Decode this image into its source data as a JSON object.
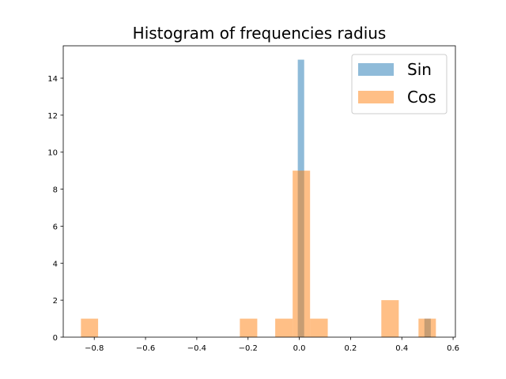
{
  "chart_data": {
    "type": "bar",
    "title": "Histogram of frequencies radius",
    "xlabel": "",
    "ylabel": "",
    "xlim": [
      -0.921,
      0.609
    ],
    "ylim": [
      0,
      15.75
    ],
    "x_ticks": [
      -0.8,
      -0.6,
      -0.4,
      -0.2,
      0.0,
      0.2,
      0.4,
      0.6
    ],
    "x_tick_labels": [
      "−0.8",
      "−0.6",
      "−0.4",
      "−0.2",
      "0.0",
      "0.2",
      "0.4",
      "0.6"
    ],
    "y_ticks": [
      0,
      2,
      4,
      6,
      8,
      10,
      12,
      14
    ],
    "y_tick_labels": [
      "0",
      "2",
      "4",
      "6",
      "8",
      "10",
      "12",
      "14"
    ],
    "legend_position": "top-right",
    "series": [
      {
        "name": "Sin",
        "color": "#1f77b4",
        "alpha": 0.5,
        "bins": [
          {
            "x0": -0.006,
            "x1": 0.019,
            "count": 15
          },
          {
            "x0": 0.488,
            "x1": 0.513,
            "count": 1
          }
        ]
      },
      {
        "name": "Cos",
        "color": "#ff7f0e",
        "alpha": 0.5,
        "bins": [
          {
            "x0": -0.852,
            "x1": -0.785,
            "count": 1
          },
          {
            "x0": -0.232,
            "x1": -0.164,
            "count": 1
          },
          {
            "x0": -0.094,
            "x1": -0.026,
            "count": 1
          },
          {
            "x0": -0.026,
            "x1": 0.042,
            "count": 9
          },
          {
            "x0": 0.042,
            "x1": 0.111,
            "count": 1
          },
          {
            "x0": 0.32,
            "x1": 0.388,
            "count": 2
          },
          {
            "x0": 0.465,
            "x1": 0.533,
            "count": 1
          }
        ]
      }
    ]
  }
}
